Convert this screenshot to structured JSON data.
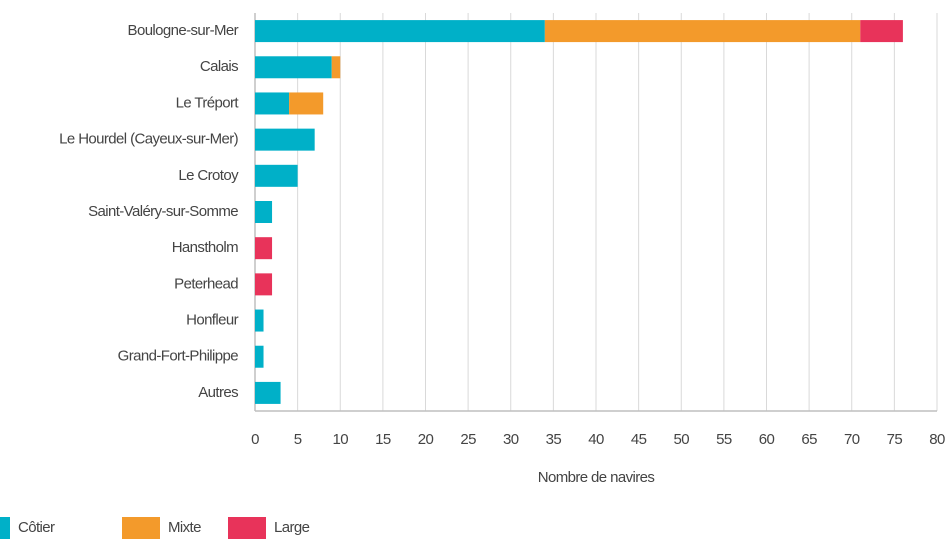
{
  "chart_data": {
    "type": "bar",
    "orientation": "horizontal",
    "stacked": true,
    "categories": [
      "Boulogne-sur-Mer",
      "Calais",
      "Le Tréport",
      "Le Hourdel (Cayeux-sur-Mer)",
      "Le Crotoy",
      "Saint-Valéry-sur-Somme",
      "Hanstholm",
      "Peterhead",
      "Honfleur",
      "Grand-Fort-Philippe",
      "Autres"
    ],
    "series": [
      {
        "name": "Côtier",
        "color": "#00b0c8",
        "values": [
          34,
          9,
          4,
          7,
          5,
          2,
          0,
          0,
          1,
          1,
          3
        ]
      },
      {
        "name": "Mixte",
        "color": "#f39a2b",
        "values": [
          37,
          1,
          4,
          0,
          0,
          0,
          0,
          0,
          0,
          0,
          0
        ]
      },
      {
        "name": "Large",
        "color": "#e8335a",
        "values": [
          5,
          0,
          0,
          0,
          0,
          0,
          2,
          2,
          0,
          0,
          0
        ]
      }
    ],
    "xlabel": "Nombre de navires",
    "xlim": [
      0,
      80
    ],
    "xticks": [
      0,
      5,
      10,
      15,
      20,
      25,
      30,
      35,
      40,
      45,
      50,
      55,
      60,
      65,
      70,
      75,
      80
    ],
    "grid": true,
    "legend": "bottom-left"
  }
}
